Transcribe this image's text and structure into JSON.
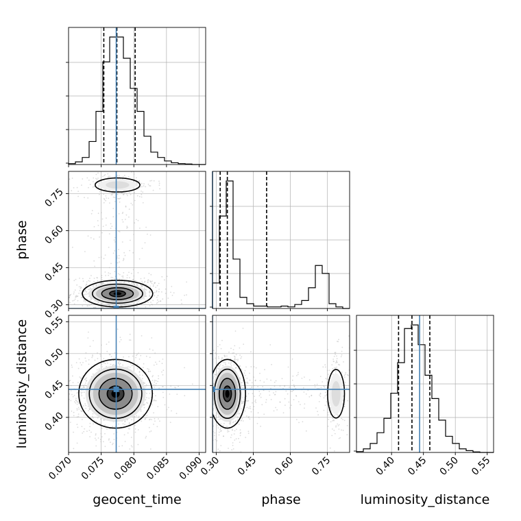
{
  "chart_data": {
    "type": "corner",
    "parameters": [
      "geocent_time",
      "phase",
      "luminosity_distance"
    ],
    "truths": {
      "geocent_time": 0.0773,
      "phase": 0.285,
      "luminosity_distance": 0.444
    },
    "truth_color": "#4682b4",
    "hist_color": "#000000",
    "grid": true,
    "axes": {
      "geocent_time": {
        "range": [
          0.07,
          0.091
        ],
        "ticks": [
          0.07,
          0.075,
          0.08,
          0.085,
          0.09
        ],
        "tick_labels": [
          "0.070",
          "0.075",
          "0.080",
          "0.085",
          "0.090"
        ],
        "quantiles": [
          0.0754,
          0.0774,
          0.0802
        ]
      },
      "phase": {
        "range": [
          0.285,
          0.84
        ],
        "ticks": [
          0.3,
          0.45,
          0.6,
          0.75
        ],
        "tick_labels": [
          "0.30",
          "0.45",
          "0.60",
          "0.75"
        ],
        "quantiles": [
          0.316,
          0.345,
          0.504
        ]
      },
      "luminosity_distance": {
        "range": [
          0.345,
          0.56
        ],
        "ticks": [
          0.4,
          0.45,
          0.5,
          0.55
        ],
        "tick_labels": [
          "0.40",
          "0.45",
          "0.50",
          "0.55"
        ],
        "quantiles": [
          0.411,
          0.432,
          0.46
        ]
      }
    },
    "panels": [
      {
        "name": "hist-geocent_time",
        "row": 0,
        "col": 0,
        "kind": "hist",
        "bins": 20,
        "counts": [
          0.5,
          1.5,
          4,
          13,
          30,
          58,
          72,
          72,
          60,
          43,
          30,
          16,
          7,
          4,
          2,
          1,
          0.5,
          0.3,
          0,
          0
        ]
      },
      {
        "name": "hist-phase",
        "row": 1,
        "col": 1,
        "kind": "hist",
        "bins": 20,
        "counts": [
          16,
          58,
          80,
          31,
          7,
          3,
          1.5,
          1.5,
          1,
          1,
          1.5,
          1,
          2.5,
          5,
          13,
          27,
          22,
          3,
          1,
          0
        ]
      },
      {
        "name": "hist-luminosity_distance",
        "row": 2,
        "col": 2,
        "kind": "hist",
        "bins": 20,
        "counts": [
          0.5,
          2,
          5,
          11,
          19,
          33,
          50,
          69,
          71,
          60,
          43,
          30,
          18,
          9,
          5,
          2,
          1,
          0.3,
          0,
          0
        ]
      },
      {
        "name": "density-phase-vs-geocent_time",
        "row": 1,
        "col": 0,
        "kind": "2d",
        "modes": [
          {
            "center": [
              0.0775,
              0.345
            ],
            "spread": [
              0.0022,
              0.022
            ],
            "weight": 0.75
          },
          {
            "center": [
              0.0775,
              0.785
            ],
            "spread": [
              0.0018,
              0.015
            ],
            "weight": 0.25
          }
        ]
      },
      {
        "name": "density-luminosity_distance-vs-geocent_time",
        "row": 2,
        "col": 0,
        "kind": "2d",
        "modes": [
          {
            "center": [
              0.0772,
              0.437
            ],
            "spread": [
              0.0023,
              0.022
            ],
            "weight": 1.0
          }
        ]
      },
      {
        "name": "density-luminosity_distance-vs-phase",
        "row": 2,
        "col": 1,
        "kind": "2d",
        "modes": [
          {
            "center": [
              0.345,
              0.437
            ],
            "spread": [
              0.03,
              0.022
            ],
            "weight": 0.75
          },
          {
            "center": [
              0.785,
              0.437
            ],
            "spread": [
              0.018,
              0.02
            ],
            "weight": 0.25
          }
        ]
      }
    ]
  }
}
